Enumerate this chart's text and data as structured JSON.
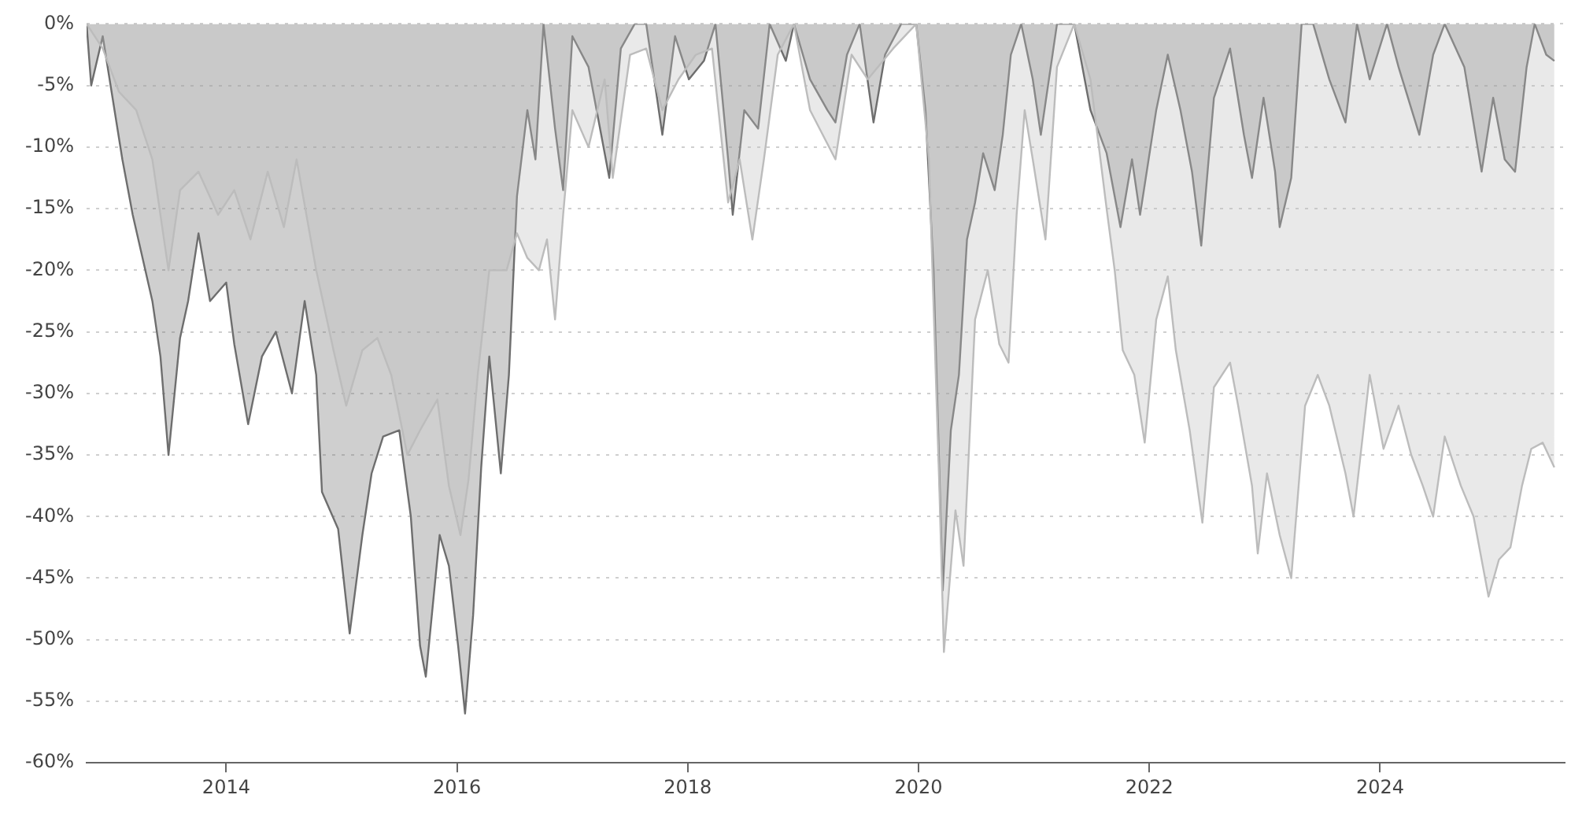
{
  "chart_data": {
    "type": "area",
    "xlim": [
      2012.79,
      2025.6
    ],
    "xticks": [
      2014,
      2016,
      2018,
      2020,
      2022,
      2024
    ],
    "ylim": [
      -60,
      0
    ],
    "yticks": [
      {
        "value": -60,
        "label": "-60%"
      },
      {
        "value": -55,
        "label": "-55%"
      },
      {
        "value": -50,
        "label": "-50%"
      },
      {
        "value": -45,
        "label": "-45%"
      },
      {
        "value": -40,
        "label": "-40%"
      },
      {
        "value": -35,
        "label": "-35%"
      },
      {
        "value": -30,
        "label": "-30%"
      },
      {
        "value": -25,
        "label": "-25%"
      },
      {
        "value": -20,
        "label": "-20%"
      },
      {
        "value": -15,
        "label": "-15%"
      },
      {
        "value": -10,
        "label": "-10%"
      },
      {
        "value": -5,
        "label": "-5%"
      },
      {
        "value": 0,
        "label": "0%"
      }
    ],
    "grid": "y",
    "series": [
      {
        "color": "#bcbcbc",
        "x": [
          2012.79,
          2012.93,
          2013.07,
          2013.22,
          2013.36,
          2013.5,
          2013.6,
          2013.76,
          2013.93,
          2014.07,
          2014.21,
          2014.36,
          2014.5,
          2014.61,
          2014.78,
          2014.93,
          2015.04,
          2015.18,
          2015.31,
          2015.43,
          2015.57,
          2015.68,
          2015.83,
          2015.93,
          2016.03,
          2016.1,
          2016.18,
          2016.28,
          2016.43,
          2016.52,
          2016.61,
          2016.71,
          2016.78,
          2016.85,
          2016.92,
          2017.0,
          2017.14,
          2017.28,
          2017.35,
          2017.5,
          2017.64,
          2017.78,
          2017.92,
          2018.07,
          2018.21,
          2018.35,
          2018.45,
          2018.56,
          2018.66,
          2018.78,
          2018.92,
          2019.06,
          2019.28,
          2019.42,
          2019.56,
          2019.78,
          2019.98,
          2020.09,
          2020.18,
          2020.22,
          2020.32,
          2020.39,
          2020.49,
          2020.6,
          2020.7,
          2020.78,
          2020.85,
          2020.92,
          2020.99,
          2021.1,
          2021.2,
          2021.35,
          2021.49,
          2021.63,
          2021.7,
          2021.77,
          2021.87,
          2021.96,
          2022.06,
          2022.16,
          2022.23,
          2022.35,
          2022.46,
          2022.56,
          2022.7,
          2022.77,
          2022.89,
          2022.94,
          2023.02,
          2023.13,
          2023.23,
          2023.35,
          2023.46,
          2023.56,
          2023.7,
          2023.77,
          2023.91,
          2024.03,
          2024.16,
          2024.27,
          2024.37,
          2024.46,
          2024.56,
          2024.7,
          2024.81,
          2024.94,
          2025.03,
          2025.13,
          2025.23,
          2025.31,
          2025.41,
          2025.51
        ],
        "values": [
          0,
          -2,
          -5.5,
          -7,
          -11,
          -20,
          -13.5,
          -12,
          -15.5,
          -13.5,
          -17.5,
          -12,
          -16.5,
          -11,
          -20,
          -26.5,
          -31,
          -26.5,
          -25.5,
          -28.5,
          -35,
          -33,
          -30.5,
          -37.5,
          -41.5,
          -37,
          -28.5,
          -20,
          -20,
          -17,
          -19,
          -20,
          -17.5,
          -24,
          -15.5,
          -7,
          -10,
          -4.5,
          -12.5,
          -2.5,
          -2,
          -7,
          -4.5,
          -2.5,
          -2,
          -14.5,
          -11,
          -17.5,
          -11,
          -2.5,
          0,
          -7,
          -11,
          -2.5,
          -4.5,
          -2,
          0,
          -11,
          -37.5,
          -51,
          -39.5,
          -44,
          -24,
          -20,
          -26,
          -27.5,
          -15.5,
          -7,
          -11,
          -17.5,
          -3.5,
          0,
          -4.5,
          -15,
          -20,
          -26.5,
          -28.5,
          -34,
          -24,
          -20.5,
          -26.5,
          -33,
          -40.5,
          -29.5,
          -27.5,
          -31,
          -37.5,
          -43,
          -36.5,
          -41.5,
          -45,
          -31,
          -28.5,
          -31,
          -36.5,
          -40,
          -28.5,
          -34.5,
          -31,
          -35,
          -37.5,
          -40,
          -33.5,
          -37.5,
          -40,
          -46.5,
          -43.5,
          -42.5,
          -37.5,
          -34.5,
          -34,
          -36
        ]
      },
      {
        "color": "#6e6e6e",
        "x": [
          2012.79,
          2012.83,
          2012.93,
          2013.1,
          2013.19,
          2013.36,
          2013.43,
          2013.5,
          2013.6,
          2013.67,
          2013.76,
          2013.86,
          2014.0,
          2014.07,
          2014.19,
          2014.31,
          2014.43,
          2014.57,
          2014.68,
          2014.78,
          2014.83,
          2014.97,
          2015.07,
          2015.18,
          2015.26,
          2015.36,
          2015.5,
          2015.6,
          2015.68,
          2015.73,
          2015.85,
          2015.93,
          2016.01,
          2016.07,
          2016.14,
          2016.21,
          2016.28,
          2016.38,
          2016.45,
          2016.52,
          2016.61,
          2016.68,
          2016.75,
          2016.85,
          2016.92,
          2017.0,
          2017.14,
          2017.21,
          2017.32,
          2017.42,
          2017.54,
          2017.64,
          2017.78,
          2017.89,
          2018.01,
          2018.14,
          2018.24,
          2018.35,
          2018.39,
          2018.49,
          2018.61,
          2018.71,
          2018.85,
          2018.92,
          2019.06,
          2019.21,
          2019.28,
          2019.38,
          2019.49,
          2019.61,
          2019.71,
          2019.85,
          2019.98,
          2020.06,
          2020.13,
          2020.21,
          2020.28,
          2020.35,
          2020.42,
          2020.49,
          2020.56,
          2020.66,
          2020.73,
          2020.8,
          2020.89,
          2020.99,
          2021.06,
          2021.2,
          2021.35,
          2021.49,
          2021.63,
          2021.75,
          2021.85,
          2021.92,
          2022.06,
          2022.16,
          2022.27,
          2022.37,
          2022.45,
          2022.56,
          2022.7,
          2022.82,
          2022.89,
          2022.99,
          2023.09,
          2023.13,
          2023.23,
          2023.32,
          2023.42,
          2023.56,
          2023.7,
          2023.8,
          2023.91,
          2024.06,
          2024.16,
          2024.34,
          2024.46,
          2024.56,
          2024.73,
          2024.88,
          2024.98,
          2025.08,
          2025.17,
          2025.27,
          2025.34,
          2025.44,
          2025.51
        ],
        "values": [
          0,
          -5,
          -1,
          -11,
          -15.5,
          -22.5,
          -27,
          -35,
          -25.5,
          -22.5,
          -17,
          -22.5,
          -21,
          -26,
          -32.5,
          -27,
          -25,
          -30,
          -22.5,
          -28.5,
          -38,
          -41,
          -49.5,
          -41.5,
          -36.5,
          -33.5,
          -33,
          -40,
          -50.5,
          -53,
          -41.5,
          -44,
          -50.5,
          -56,
          -48,
          -36,
          -27,
          -36.5,
          -28.5,
          -14,
          -7,
          -11,
          0,
          -8.5,
          -13.5,
          -1,
          -3.5,
          -7,
          -12.5,
          -2,
          0,
          0,
          -9,
          -1,
          -4.5,
          -3,
          0,
          -11,
          -15.5,
          -7,
          -8.5,
          0,
          -3,
          0,
          -4.5,
          -7,
          -8,
          -2.5,
          0,
          -8,
          -2.5,
          0,
          0,
          -7,
          -20,
          -46,
          -33,
          -28.5,
          -17.5,
          -14.5,
          -10.5,
          -13.5,
          -9,
          -2.5,
          0,
          -4.5,
          -9,
          0,
          0,
          -7,
          -10.5,
          -16.5,
          -11,
          -15.5,
          -7,
          -2.5,
          -7,
          -12,
          -18,
          -6,
          -2,
          -9,
          -12.5,
          -6,
          -12,
          -16.5,
          -12.5,
          0,
          0,
          -4.5,
          -8,
          0,
          -4.5,
          0,
          -3.5,
          -9,
          -2.5,
          0,
          -3.5,
          -12,
          -6,
          -11,
          -12,
          -3.5,
          0,
          -2.5,
          -3
        ]
      }
    ]
  }
}
